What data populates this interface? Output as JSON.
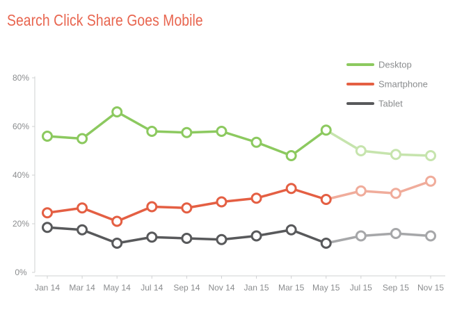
{
  "chart_data": {
    "type": "line",
    "title": "Search Click Share Goes Mobile",
    "xlabel": "",
    "ylabel": "",
    "ylim": [
      0,
      80
    ],
    "yticks": [
      0,
      20,
      40,
      60,
      80
    ],
    "ytick_labels": [
      "0%",
      "20%",
      "40%",
      "60%",
      "80%"
    ],
    "categories": [
      "Jan 14",
      "Mar 14",
      "May 14",
      "Jul 14",
      "Sep 14",
      "Nov 14",
      "Jan 15",
      "Mar 15",
      "May 15",
      "Jul 15",
      "Sep 15",
      "Nov 15"
    ],
    "grid": false,
    "legend_position": "top-right",
    "series": [
      {
        "name": "Desktop",
        "color": "#8cc95f",
        "light_color": "#c6e4ad",
        "values": [
          56,
          55,
          66,
          58,
          57.5,
          58,
          53.5,
          48,
          58.5,
          50,
          48.5,
          48
        ]
      },
      {
        "name": "Smartphone",
        "color": "#e45f43",
        "light_color": "#f0ac9b",
        "values": [
          24.5,
          26.5,
          21,
          27,
          26.5,
          29,
          30.5,
          34.5,
          30,
          33.5,
          32.5,
          37.5
        ]
      },
      {
        "name": "Tablet",
        "color": "#58595b",
        "light_color": "#a6a7a9",
        "values": [
          18.5,
          17.5,
          12,
          14.5,
          14,
          13.5,
          15,
          17.5,
          12,
          15,
          16,
          15
        ]
      }
    ]
  }
}
